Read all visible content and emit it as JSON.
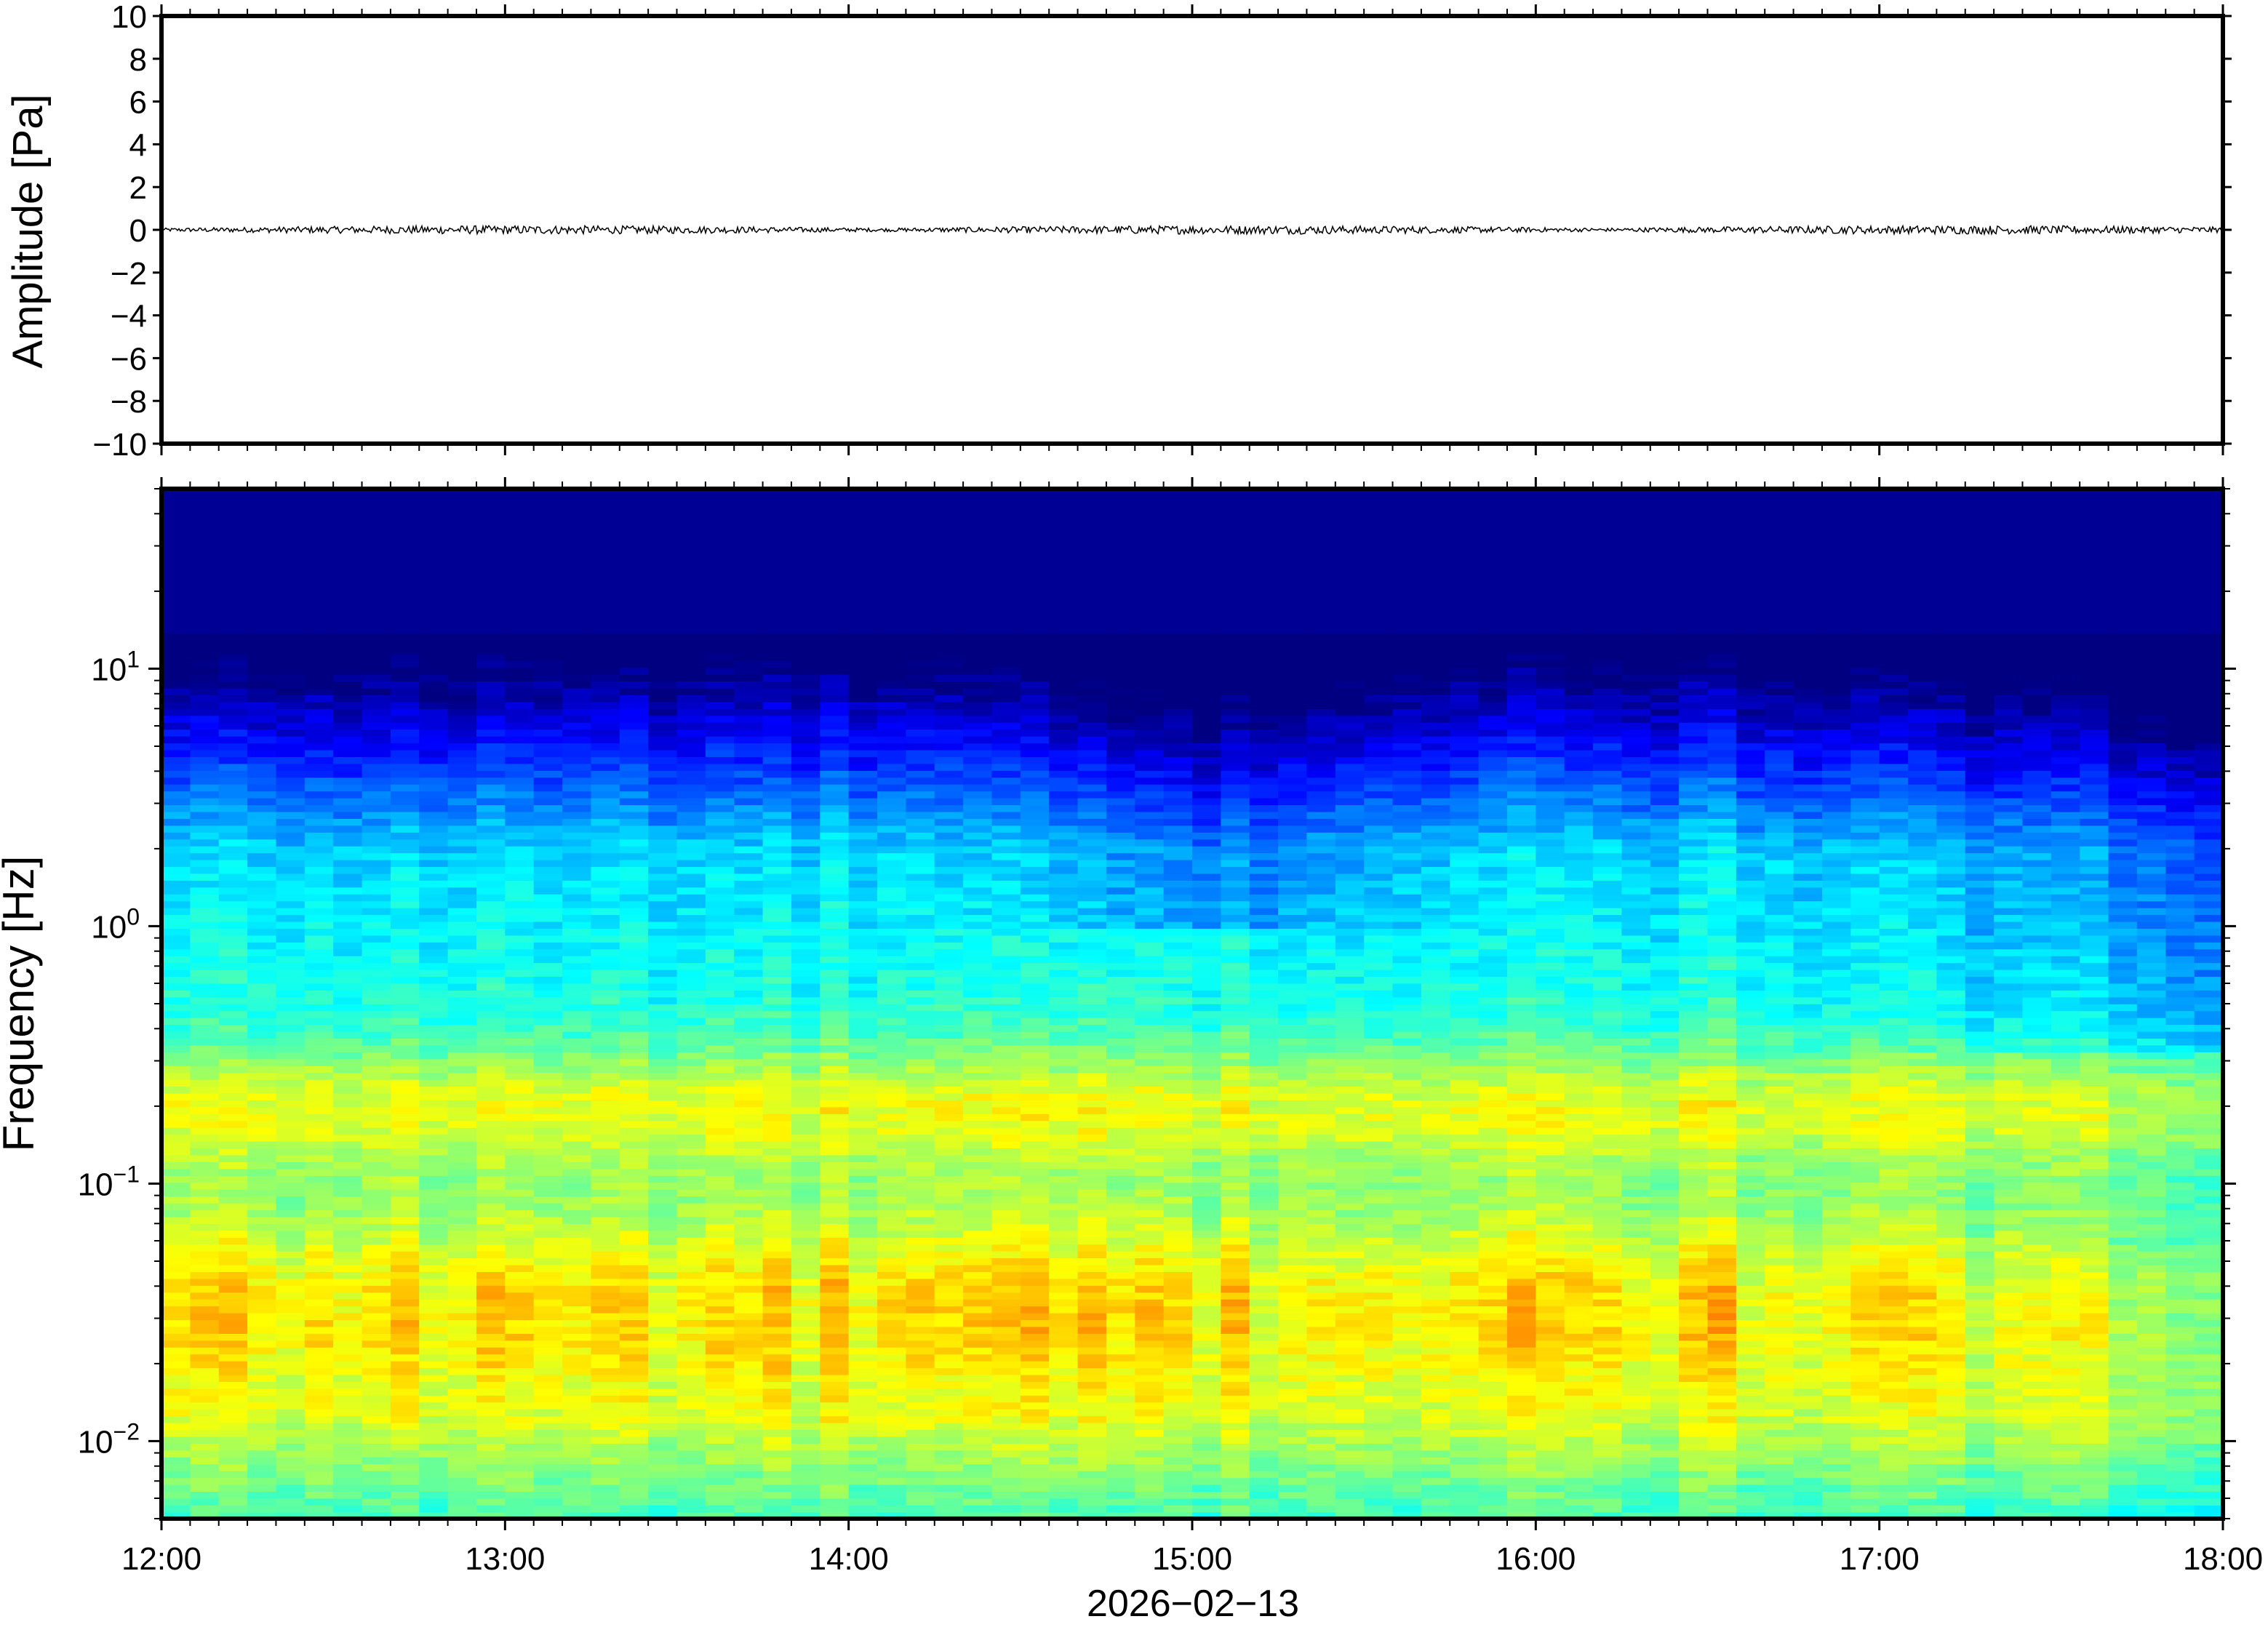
{
  "chart_data": [
    {
      "type": "line",
      "title": "",
      "xlabel": "",
      "ylabel": "Amplitude [Pa]",
      "ylim": [
        -10,
        10
      ],
      "yticks": [
        10,
        8,
        6,
        4,
        2,
        0,
        -2,
        -4,
        -6,
        -8,
        -10
      ],
      "ytick_labels": [
        "10",
        "8",
        "6",
        "4",
        "2",
        "0",
        "−2",
        "−4",
        "−6",
        "−8",
        "−10"
      ],
      "x_range": [
        "12:00",
        "18:00"
      ],
      "series": [
        {
          "values_description": "near-zero pressure trace",
          "y_min": -0.2,
          "y_max": 0.2
        }
      ],
      "grid": false
    },
    {
      "type": "heatmap",
      "title": "",
      "xlabel": "2026−02−13",
      "ylabel": "Frequency [Hz]",
      "y_scale": "log",
      "ylim": [
        0.005,
        50
      ],
      "yticks": [
        10,
        1,
        0.1,
        0.01
      ],
      "ytick_labels": [
        {
          "base": "10",
          "exp": "1"
        },
        {
          "base": "10",
          "exp": "0"
        },
        {
          "base": "10",
          "exp": "−1"
        },
        {
          "base": "10",
          "exp": "−2"
        }
      ],
      "xticks": [
        "12:00",
        "13:00",
        "14:00",
        "15:00",
        "16:00",
        "17:00",
        "18:00"
      ],
      "colormap": "jet",
      "features": {
        "microseism_band_hz": 0.2,
        "high_frequency_cutoff_hz": 10
      },
      "grid": false
    }
  ],
  "colors": {
    "background": "#ffffff",
    "axis": "#000000",
    "spectrogram_high": "#000080",
    "spectrogram_peak": "#f8c070"
  }
}
